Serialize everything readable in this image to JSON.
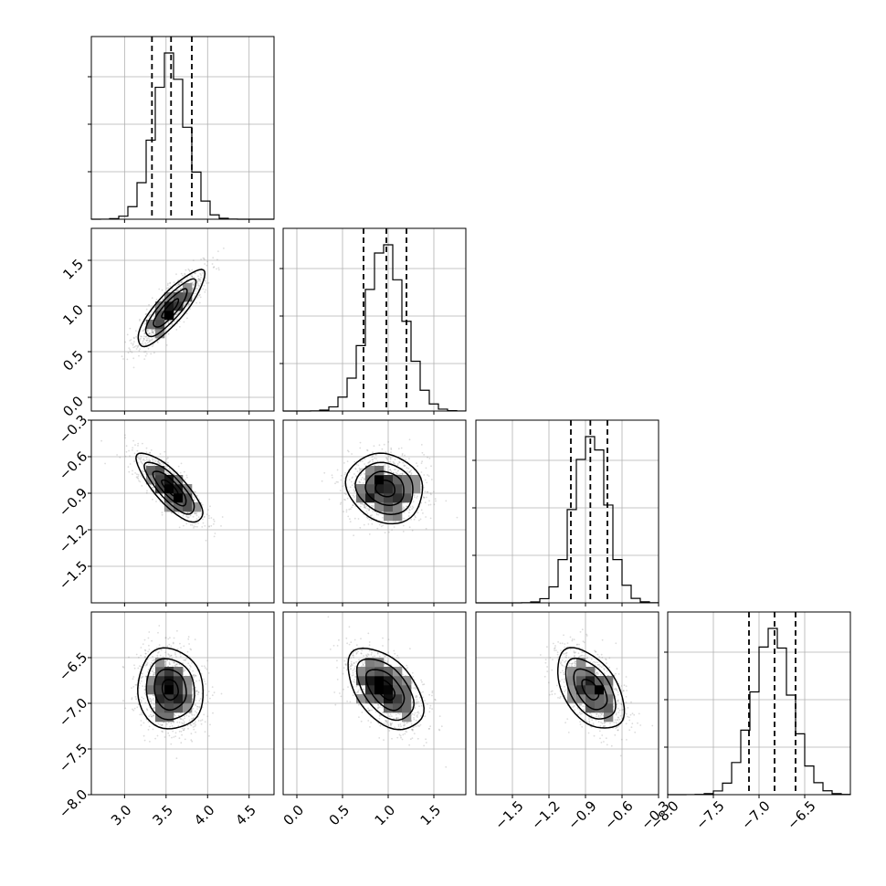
{
  "chart_data": {
    "type": "corner",
    "title": "",
    "grid": true,
    "colors": {
      "lines": "#000000",
      "grid": "#b0b0b0",
      "points": "#808080"
    },
    "params": [
      {
        "range": [
          2.6,
          4.8
        ],
        "ticks": [
          3.0,
          3.5,
          4.0,
          4.5
        ],
        "tick_labels": [
          "3.0",
          "3.5",
          "4.0",
          "4.5"
        ],
        "mean": 3.55,
        "sd": 0.2,
        "quantiles": [
          3.33,
          3.56,
          3.81
        ]
      },
      {
        "range": [
          -0.15,
          1.85
        ],
        "ticks": [
          0.0,
          0.5,
          1.0,
          1.5
        ],
        "tick_labels": [
          "0.0",
          "0.5",
          "1.0",
          "1.5"
        ],
        "mean": 0.97,
        "sd": 0.21,
        "quantiles": [
          0.73,
          0.98,
          1.2
        ]
      },
      {
        "range": [
          -1.8,
          -0.3
        ],
        "ticks": [
          -1.5,
          -1.2,
          -0.9,
          -0.6,
          -0.3
        ],
        "tick_labels": [
          "−1.5",
          "−1.2",
          "−0.9",
          "−0.6",
          "−0.3"
        ],
        "mean": -0.86,
        "sd": 0.14,
        "quantiles": [
          -1.02,
          -0.86,
          -0.72
        ]
      },
      {
        "range": [
          -8.0,
          -6.0
        ],
        "ticks": [
          -8.0,
          -7.5,
          -7.0,
          -6.5
        ],
        "tick_labels": [
          "−8.0",
          "−7.5",
          "−7.0",
          "−6.5"
        ],
        "mean": -6.85,
        "sd": 0.22,
        "quantiles": [
          -7.11,
          -6.83,
          -6.6
        ]
      }
    ],
    "correlations": [
      [
        1.0,
        0.85,
        -0.8,
        -0.1
      ],
      [
        0.85,
        1.0,
        -0.1,
        -0.5
      ],
      [
        -0.8,
        -0.1,
        1.0,
        -0.5
      ],
      [
        -0.1,
        -0.5,
        -0.5,
        1.0
      ]
    ]
  }
}
